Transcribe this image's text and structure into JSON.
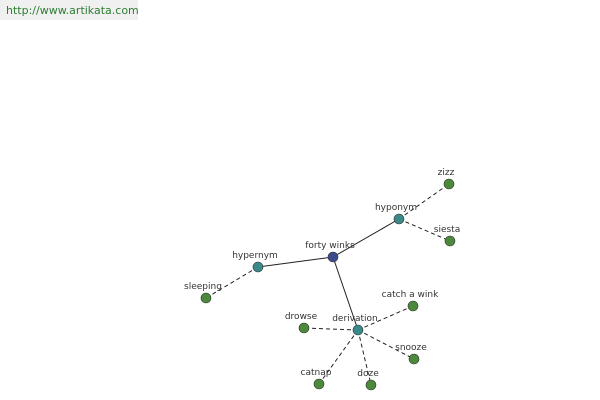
{
  "header": {
    "url": "http://www.artikata.com"
  },
  "nodes": [
    {
      "label": "forty winks"
    },
    {
      "label": "hyponym"
    },
    {
      "label": "hypernym"
    },
    {
      "label": "derivation"
    },
    {
      "label": "zizz"
    },
    {
      "label": "siesta"
    },
    {
      "label": "sleeping"
    },
    {
      "label": "catch a wink"
    },
    {
      "label": "drowse"
    },
    {
      "label": "snooze"
    },
    {
      "label": "catnap"
    },
    {
      "label": "doze"
    }
  ]
}
